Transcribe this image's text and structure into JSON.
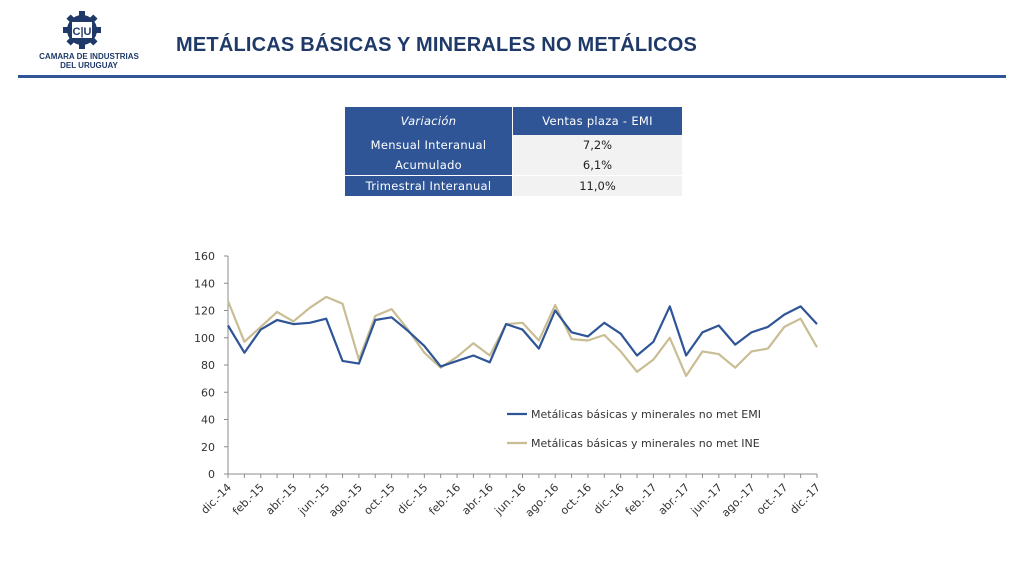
{
  "header": {
    "logo_text_line1": "CAMARA DE INDUSTRIAS",
    "logo_text_line2": "DEL URUGUAY",
    "logo_mark_text": "C|U",
    "title": "METÁLICAS BÁSICAS Y MINERALES NO METÁLICOS"
  },
  "summary_table": {
    "headers": [
      "Variación",
      "Ventas plaza - EMI"
    ],
    "rows": [
      {
        "label": "Mensual Interanual",
        "value": "7,2%"
      },
      {
        "label": "Acumulado",
        "value": "6,1%"
      },
      {
        "label": "Trimestral Interanual",
        "value": "11,0%"
      }
    ]
  },
  "colors": {
    "brand": "#1f3a68",
    "accent": "#2f5597",
    "emi": "#2f5597",
    "ine": "#c9bd93"
  },
  "chart_data": {
    "type": "line",
    "ylim": [
      0,
      160
    ],
    "yticks": [
      0,
      20,
      40,
      60,
      80,
      100,
      120,
      140,
      160
    ],
    "x_tick_labels": [
      "dic.-14",
      "feb.-15",
      "abr.-15",
      "jun.-15",
      "ago.-15",
      "oct.-15",
      "dic.-15",
      "feb.-16",
      "abr.-16",
      "jun.-16",
      "ago.-16",
      "oct.-16",
      "dic.-16",
      "feb.-17",
      "abr.-17",
      "jun.-17",
      "ago.-17",
      "oct.-17",
      "dic.-17"
    ],
    "x": [
      "dic.-14",
      "ene.-15",
      "feb.-15",
      "mar.-15",
      "abr.-15",
      "may.-15",
      "jun.-15",
      "jul.-15",
      "ago.-15",
      "sep.-15",
      "oct.-15",
      "nov.-15",
      "dic.-15",
      "ene.-16",
      "feb.-16",
      "mar.-16",
      "abr.-16",
      "may.-16",
      "jun.-16",
      "jul.-16",
      "ago.-16",
      "sep.-16",
      "oct.-16",
      "nov.-16",
      "dic.-16",
      "ene.-17",
      "feb.-17",
      "mar.-17",
      "abr.-17",
      "may.-17",
      "jun.-17",
      "jul.-17",
      "ago.-17",
      "sep.-17",
      "oct.-17",
      "nov.-17",
      "dic.-17"
    ],
    "series": [
      {
        "name": "Metálicas básicas y minerales no met EMI",
        "color": "#2f5597",
        "values": [
          109,
          89,
          106,
          113,
          110,
          111,
          114,
          83,
          81,
          113,
          115,
          105,
          94,
          79,
          83,
          87,
          82,
          110,
          106,
          92,
          120,
          104,
          101,
          111,
          103,
          87,
          97,
          123,
          87,
          104,
          109,
          95,
          104,
          108,
          117,
          123,
          110
        ]
      },
      {
        "name": "Metálicas básicas y minerales no met INE",
        "color": "#c9bd93",
        "values": [
          127,
          97,
          108,
          119,
          112,
          122,
          130,
          125,
          84,
          116,
          121,
          106,
          89,
          78,
          86,
          96,
          87,
          110,
          111,
          98,
          124,
          99,
          98,
          102,
          90,
          75,
          84,
          100,
          72,
          90,
          88,
          78,
          90,
          92,
          108,
          114,
          93
        ]
      }
    ],
    "legend_position": "right-middle",
    "grid": false
  }
}
